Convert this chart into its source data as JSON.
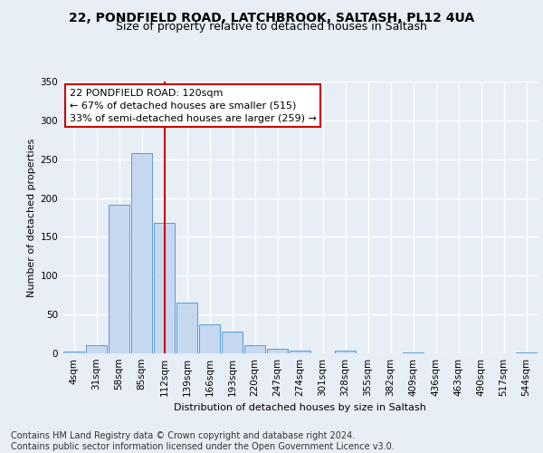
{
  "title1": "22, PONDFIELD ROAD, LATCHBROOK, SALTASH, PL12 4UA",
  "title2": "Size of property relative to detached houses in Saltash",
  "xlabel": "Distribution of detached houses by size in Saltash",
  "ylabel": "Number of detached properties",
  "footnote": "Contains HM Land Registry data © Crown copyright and database right 2024.\nContains public sector information licensed under the Open Government Licence v3.0.",
  "bar_labels": [
    "4sqm",
    "31sqm",
    "58sqm",
    "85sqm",
    "112sqm",
    "139sqm",
    "166sqm",
    "193sqm",
    "220sqm",
    "247sqm",
    "274sqm",
    "301sqm",
    "328sqm",
    "355sqm",
    "382sqm",
    "409sqm",
    "436sqm",
    "463sqm",
    "490sqm",
    "517sqm",
    "544sqm"
  ],
  "bar_values": [
    2,
    10,
    191,
    258,
    168,
    65,
    37,
    28,
    11,
    6,
    4,
    0,
    3,
    0,
    0,
    1,
    0,
    0,
    0,
    0,
    1
  ],
  "bar_color": "#c5d8f0",
  "bar_edge_color": "#5b9bd5",
  "vline_x": 4,
  "vline_color": "#cc0000",
  "annotation_line1": "22 PONDFIELD ROAD: 120sqm",
  "annotation_line2": "← 67% of detached houses are smaller (515)",
  "annotation_line3": "33% of semi-detached houses are larger (259) →",
  "ylim": [
    0,
    350
  ],
  "yticks": [
    0,
    50,
    100,
    150,
    200,
    250,
    300,
    350
  ],
  "bg_color": "#e8eef6",
  "grid_color": "#ffffff",
  "title1_fontsize": 10,
  "title2_fontsize": 9,
  "axis_fontsize": 7.5,
  "ylabel_fontsize": 8,
  "xlabel_fontsize": 8,
  "footnote_fontsize": 7,
  "annotation_fontsize": 8
}
